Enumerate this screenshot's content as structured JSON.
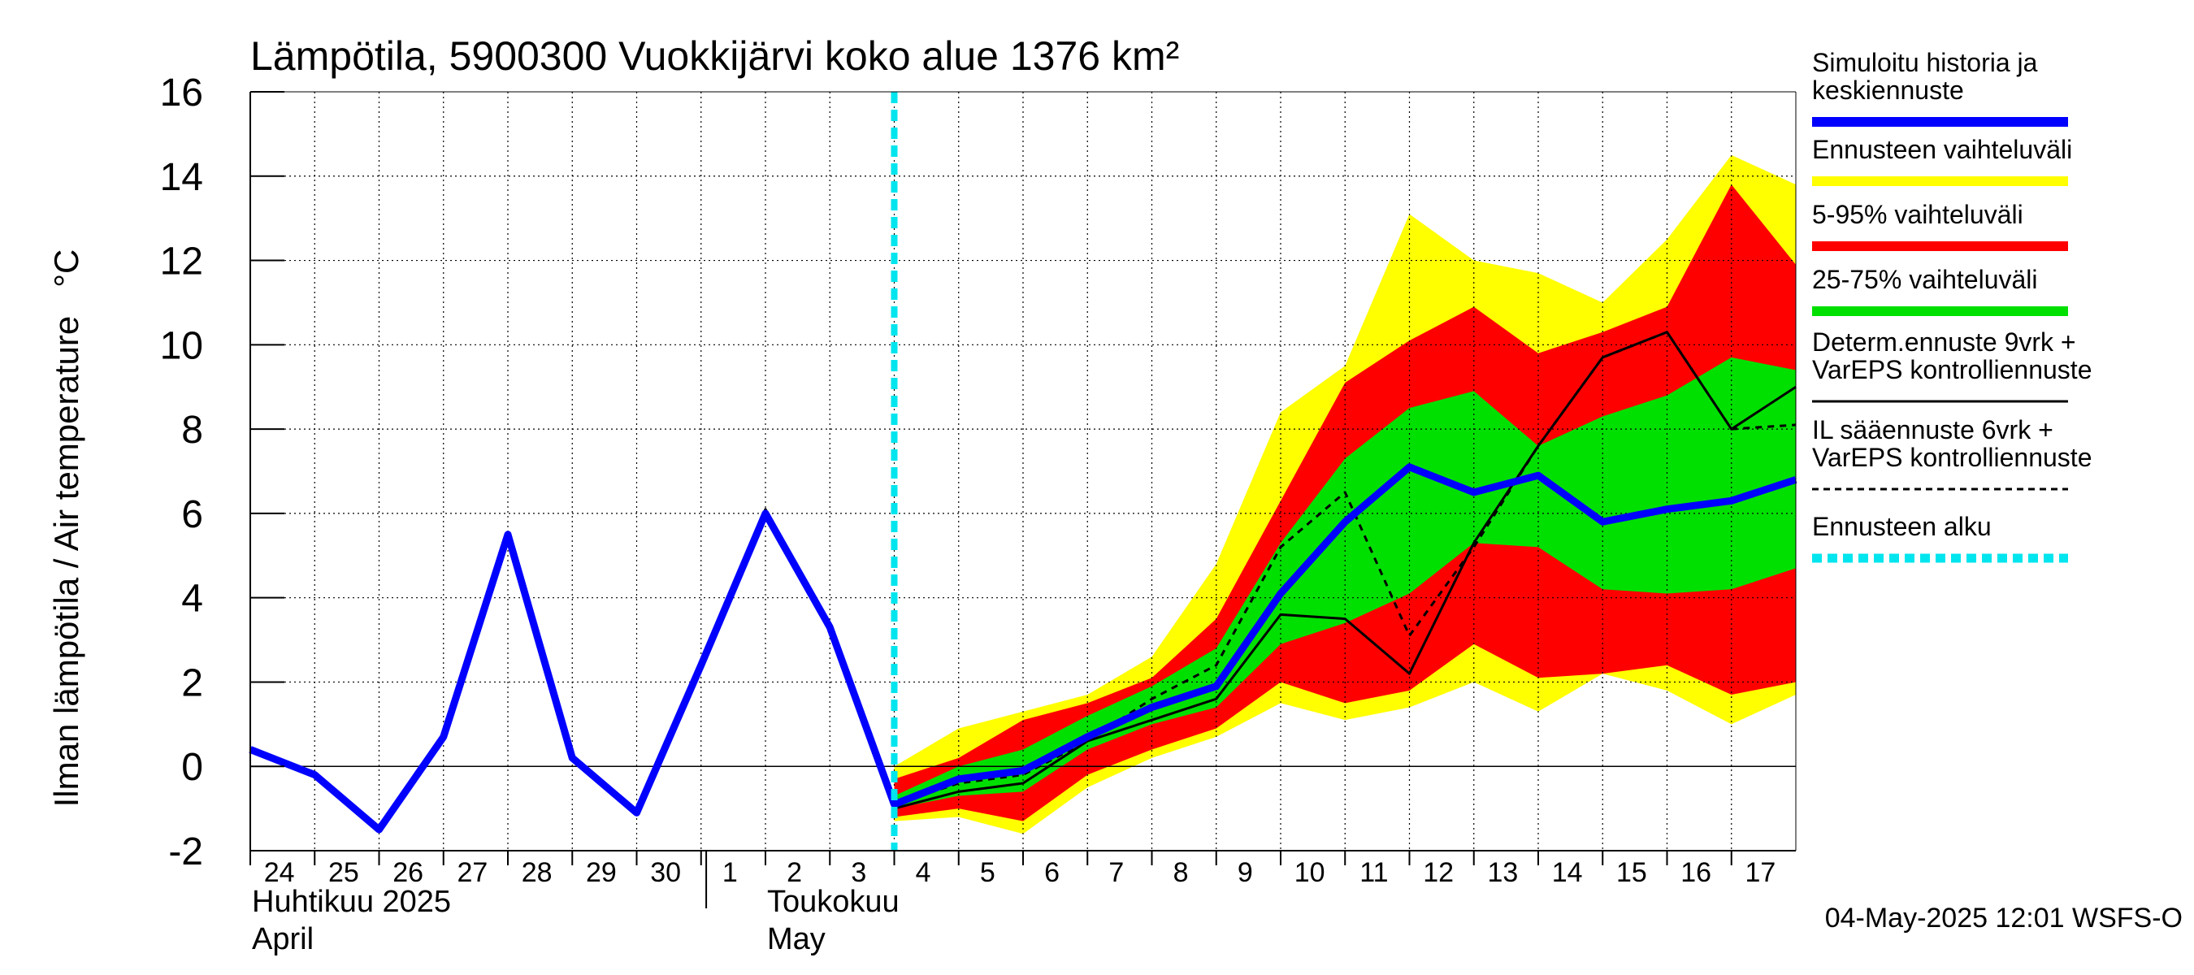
{
  "chart_data": {
    "type": "area",
    "title": "Lämpötila, 5900300 Vuokkijärvi koko alue 1376 km²",
    "ylabel": "Ilman lämpötila / Air temperature   °C",
    "ylim": [
      -2,
      16
    ],
    "xlim": [
      "2025-04-24",
      "2025-05-18"
    ],
    "y_ticks": [
      -2,
      0,
      2,
      4,
      6,
      8,
      10,
      12,
      14,
      16
    ],
    "x_tick_labels": [
      "24",
      "25",
      "26",
      "27",
      "28",
      "29",
      "30",
      "1",
      "2",
      "3",
      "4",
      "5",
      "6",
      "7",
      "8",
      "9",
      "10",
      "11",
      "12",
      "13",
      "14",
      "15",
      "16",
      "17"
    ],
    "x_tick_dates": [
      "2025-04-24",
      "2025-04-25",
      "2025-04-26",
      "2025-04-27",
      "2025-04-28",
      "2025-04-29",
      "2025-04-30",
      "2025-05-01",
      "2025-05-02",
      "2025-05-03",
      "2025-05-04",
      "2025-05-05",
      "2025-05-06",
      "2025-05-07",
      "2025-05-08",
      "2025-05-09",
      "2025-05-10",
      "2025-05-11",
      "2025-05-12",
      "2025-05-13",
      "2025-05-14",
      "2025-05-15",
      "2025-05-16",
      "2025-05-17"
    ],
    "month_labels": [
      {
        "fi": "Huhtikuu  2025",
        "en": "April",
        "date": "2025-04-24"
      },
      {
        "fi": "Toukokuu",
        "en": "May",
        "date": "2025-05-02"
      }
    ],
    "forecast_start": "2025-05-04",
    "timestamp": "04-May-2025 12:01 WSFS-O",
    "grid": true,
    "legend_position": "right",
    "colors": {
      "history": "#0000ff",
      "range": "#ffff00",
      "p5_95": "#ff0000",
      "p25_75": "#00e000",
      "determ": "#000000",
      "il": "#000000",
      "start": "#00e5ee"
    },
    "legend": [
      {
        "key": "history",
        "label": "Simuloitu historia ja\nkeskiennuste",
        "style": "thick"
      },
      {
        "key": "range",
        "label": "Ennusteen vaihteluväli",
        "style": "thick"
      },
      {
        "key": "p5_95",
        "label": "5-95% vaihteluväli",
        "style": "thick"
      },
      {
        "key": "p25_75",
        "label": "25-75% vaihteluväli",
        "style": "thick"
      },
      {
        "key": "determ",
        "label": "Determ.ennuste 9vrk +\nVarEPS kontrolliennuste",
        "style": "thin"
      },
      {
        "key": "il",
        "label": "IL sääennuste 6vrk  +\n  VarEPS kontrolliennuste",
        "style": "dashed"
      },
      {
        "key": "start",
        "label": "Ennusteen alku",
        "style": "dashed-thick"
      }
    ],
    "band_x": [
      "2025-05-04",
      "2025-05-05",
      "2025-05-06",
      "2025-05-07",
      "2025-05-08",
      "2025-05-09",
      "2025-05-10",
      "2025-05-11",
      "2025-05-12",
      "2025-05-13",
      "2025-05-14",
      "2025-05-15",
      "2025-05-16",
      "2025-05-17",
      "2025-05-18"
    ],
    "bands": {
      "range": {
        "upper": [
          0.0,
          0.9,
          1.3,
          1.7,
          2.6,
          4.8,
          8.4,
          9.5,
          13.1,
          12.0,
          11.7,
          11.0,
          12.5,
          14.5,
          13.8
        ],
        "lower": [
          -1.3,
          -1.2,
          -1.6,
          -0.5,
          0.2,
          0.7,
          1.5,
          1.1,
          1.4,
          2.0,
          1.3,
          2.2,
          1.8,
          1.0,
          1.7
        ]
      },
      "p5_95": {
        "upper": [
          -0.3,
          0.2,
          1.1,
          1.5,
          2.1,
          3.5,
          6.3,
          9.1,
          10.1,
          10.9,
          9.8,
          10.3,
          10.9,
          13.8,
          11.9
        ]
      },
      "p5_95_lower": [
        -1.2,
        -1.0,
        -1.3,
        -0.2,
        0.4,
        0.9,
        2.0,
        1.5,
        1.8,
        2.9,
        2.1,
        2.2,
        2.4,
        1.7,
        2.0
      ],
      "p25_75": {
        "upper": [
          -0.7,
          0.0,
          0.4,
          1.2,
          1.9,
          2.8,
          5.3,
          7.3,
          8.5,
          8.9,
          7.6,
          8.3,
          8.8,
          9.7,
          9.4
        ],
        "lower": [
          -1.0,
          -0.7,
          -0.6,
          0.4,
          1.0,
          1.4,
          2.9,
          3.4,
          4.1,
          5.3,
          5.2,
          4.2,
          4.1,
          4.2,
          4.7
        ]
      }
    },
    "series": [
      {
        "key": "history",
        "x": [
          "2025-04-24",
          "2025-04-25",
          "2025-04-26",
          "2025-04-27",
          "2025-04-28",
          "2025-04-29",
          "2025-04-30",
          "2025-05-01",
          "2025-05-02",
          "2025-05-03",
          "2025-05-04",
          "2025-05-05",
          "2025-05-06",
          "2025-05-07",
          "2025-05-08",
          "2025-05-09",
          "2025-05-10",
          "2025-05-11",
          "2025-05-12",
          "2025-05-13",
          "2025-05-14",
          "2025-05-15",
          "2025-05-16",
          "2025-05-17",
          "2025-05-18"
        ],
        "values": [
          0.4,
          -0.2,
          -1.5,
          0.7,
          5.5,
          0.2,
          -1.1,
          2.4,
          6.0,
          3.3,
          -0.9,
          -0.3,
          -0.1,
          0.7,
          1.4,
          1.9,
          4.1,
          5.8,
          7.1,
          6.5,
          6.9,
          5.8,
          6.1,
          6.3,
          6.8
        ]
      },
      {
        "key": "determ",
        "x": [
          "2025-05-01",
          "2025-05-02",
          "2025-05-03",
          "2025-05-04",
          "2025-05-05",
          "2025-05-06",
          "2025-05-07",
          "2025-05-08",
          "2025-05-09",
          "2025-05-10",
          "2025-05-11",
          "2025-05-12",
          "2025-05-13",
          "2025-05-14",
          "2025-05-15",
          "2025-05-16",
          "2025-05-17",
          "2025-05-18"
        ],
        "values": [
          2.4,
          6.1,
          3.3,
          -1.0,
          -0.6,
          -0.4,
          0.6,
          1.1,
          1.6,
          3.6,
          3.5,
          2.2,
          5.3,
          7.6,
          9.7,
          10.3,
          8.0,
          9.0
        ]
      },
      {
        "key": "il",
        "x": [
          "2025-05-04",
          "2025-05-05",
          "2025-05-06",
          "2025-05-07",
          "2025-05-08",
          "2025-05-09",
          "2025-05-10",
          "2025-05-11",
          "2025-05-12",
          "2025-05-13",
          "2025-05-14",
          "2025-05-15",
          "2025-05-16",
          "2025-05-17",
          "2025-05-18"
        ],
        "values": [
          -0.9,
          -0.4,
          -0.2,
          0.6,
          1.6,
          2.4,
          5.2,
          6.5,
          3.1,
          5.2,
          7.6,
          9.7,
          10.3,
          8.0,
          8.1
        ]
      }
    ]
  }
}
